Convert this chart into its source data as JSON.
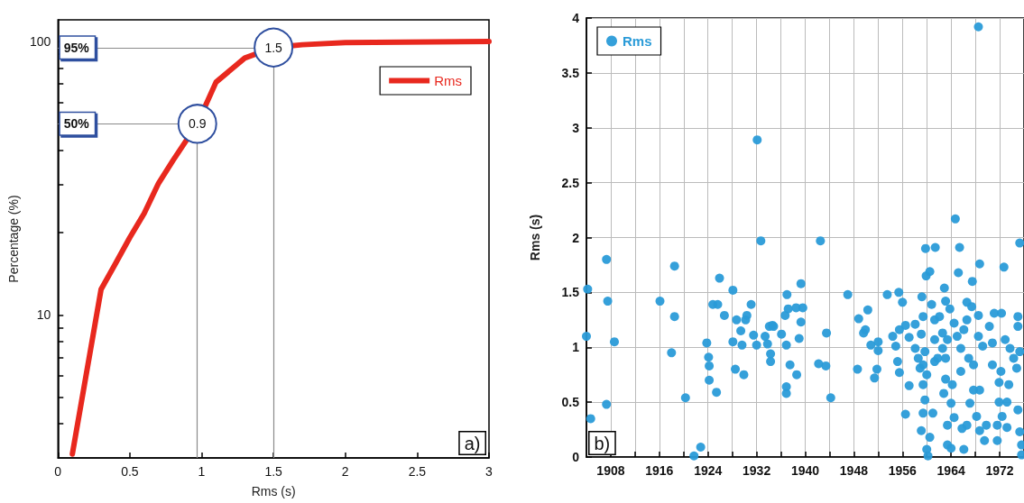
{
  "chart_data": [
    {
      "type": "line",
      "xlabel": "Rms (s)",
      "ylabel": "Percentage (%)",
      "log": "y",
      "grid": false,
      "legend": "top right",
      "marker": "none",
      "line_style": "solid",
      "xlim": [
        0,
        3
      ],
      "xticks": [
        0,
        0.5,
        1,
        1.5,
        2,
        2.5,
        3
      ],
      "ylim": [
        3,
        120
      ],
      "yticks": [
        {
          "value": 4,
          "label": null
        },
        {
          "value": 5,
          "label": null
        },
        {
          "value": 6,
          "label": null
        },
        {
          "value": 7,
          "label": null
        },
        {
          "value": 8,
          "label": null
        },
        {
          "value": 9,
          "label": null
        },
        10,
        {
          "value": 20,
          "label": null
        },
        {
          "value": 30,
          "label": null
        },
        {
          "value": 40,
          "label": null
        },
        {
          "value": 50,
          "label": null
        },
        {
          "value": 60,
          "label": null
        },
        {
          "value": 70,
          "label": null
        },
        {
          "value": 80,
          "label": null
        },
        {
          "value": 90,
          "label": null
        },
        100
      ],
      "series": [
        {
          "name": "Rms",
          "color": "#e8281e",
          "x": [
            0.1,
            0.3,
            0.4,
            0.5,
            0.6,
            0.7,
            0.8,
            0.97,
            1.1,
            1.3,
            1.5,
            1.7,
            2.0,
            3.0
          ],
          "values": [
            3.1,
            12.4,
            15.4,
            19.2,
            23.5,
            30.3,
            36.7,
            50,
            71,
            87,
            95,
            97.3,
            99,
            100
          ]
        }
      ],
      "ref_lines": [
        {
          "axis": "y",
          "value": 95,
          "label": "95%"
        },
        {
          "axis": "y",
          "value": 50,
          "label": "50%"
        },
        {
          "axis": "x",
          "value": 1.5
        },
        {
          "axis": "x",
          "value": 0.97
        }
      ],
      "annotations": [
        {
          "text": "1.5",
          "x": 1.5,
          "y": 95
        },
        {
          "text": "0.9",
          "x": 0.97,
          "y": 50
        },
        "a)"
      ]
    },
    {
      "type": "scatter",
      "ylabel": "Rms (s)",
      "grid": true,
      "legend": "top left",
      "marker": "circle",
      "xlim": [
        1904,
        1976
      ],
      "xticks": [
        1908,
        {
          "value": 1912,
          "label": null
        },
        1916,
        {
          "value": 1920,
          "label": null
        },
        1924,
        {
          "value": 1928,
          "label": null
        },
        1932,
        {
          "value": 1936,
          "label": null
        },
        1940,
        {
          "value": 1944,
          "label": null
        },
        1948,
        {
          "value": 1952,
          "label": null
        },
        1956,
        {
          "value": 1960,
          "label": null
        },
        1964,
        {
          "value": 1968,
          "label": null
        },
        1972
      ],
      "ylim": [
        0,
        4
      ],
      "yticks": [
        0,
        0.5,
        1,
        1.5,
        2,
        2.5,
        3,
        3.5,
        4
      ],
      "series": [
        {
          "name": "Rms",
          "color": "#2a9bd8",
          "x": [
            1904.2,
            1904.0,
            1904.7,
            1907.3,
            1907.5,
            1907.3,
            1908.6,
            1916.1,
            1918.5,
            1918.5,
            1918.0,
            1920.3,
            1921.7,
            1922.8,
            1923.8,
            1924.1,
            1924.2,
            1924.2,
            1925.4,
            1924.8,
            1925.6,
            1925.9,
            1926.7,
            1928.1,
            1928.1,
            1928.5,
            1928.7,
            1929.4,
            1929.6,
            1929.9,
            1930.2,
            1930.4,
            1931.1,
            1931.5,
            1932.0,
            1932.1,
            1932.7,
            1933.4,
            1933.8,
            1934.1,
            1934.3,
            1934.3,
            1934.6,
            1934.8,
            1936.1,
            1936.9,
            1936.7,
            1937.2,
            1937.0,
            1937.5,
            1936.9,
            1936.9,
            1938.6,
            1938.5,
            1939.6,
            1939.3,
            1939.3,
            1939.0,
            1942.2,
            1943.4,
            1942.5,
            1943.5,
            1944.2,
            1947.0,
            1948.6,
            1948.8,
            1949.6,
            1950.3,
            1949.9,
            1950.8,
            1952.0,
            1952.0,
            1951.8,
            1951.4,
            1953.5,
            1955.4,
            1956.0,
            1954.4,
            1954.9,
            1955.5,
            1956.5,
            1957.1,
            1955.2,
            1955.5,
            1957.1,
            1956.5,
            1958.1,
            1959.1,
            1958.1,
            1959.2,
            1959.1,
            1960.0,
            1960.2,
            1960.5,
            1959.8,
            1961.4,
            1959.9,
            1960.5,
            1960.8,
            1959.4,
            1961.3,
            1962.1,
            1962.9,
            1963.1,
            1963.8,
            1964.7,
            1965.4,
            1965.2,
            1968.7,
            1967.5,
            1966.6,
            1967.4,
            1968.5,
            1968.5,
            1972.7,
            1975.3,
            1971.1,
            1972.3,
            1975.0,
            1975.0,
            1959.7,
            1959.4,
            1959.4,
            1959.7,
            1959.4,
            1961.0,
            1960.0,
            1961.3,
            1961.3,
            1961.8,
            1962.6,
            1962.6,
            1963.4,
            1963.1,
            1963.1,
            1962.8,
            1963.4,
            1964.2,
            1964.0,
            1963.4,
            1964.0,
            1964.5,
            1965.6,
            1965.6,
            1965.0,
            1966.1,
            1966.1,
            1965.8,
            1966.6,
            1966.9,
            1967.7,
            1967.1,
            1967.7,
            1968.2,
            1968.5,
            1968.7,
            1968.7,
            1969.5,
            1969.8,
            1969.2,
            1970.3,
            1970.8,
            1971.6,
            1971.6,
            1971.9,
            1973.2,
            1972.4,
            1973.2,
            1971.9,
            1972.2,
            1972.9,
            1973.7,
            1974.3,
            1974.8,
            1975.3,
            1975.0,
            1975.3,
            1975.6,
            1975.6,
            1973.5,
            1970.8,
            1966.6,
            1964.5,
            1958.6,
            1958.9
          ],
          "values": [
            1.53,
            1.1,
            0.35,
            1.8,
            1.42,
            0.48,
            1.05,
            1.42,
            1.74,
            1.28,
            0.95,
            0.54,
            0.01,
            0.09,
            1.04,
            0.91,
            0.83,
            0.7,
            0.59,
            1.39,
            1.39,
            1.63,
            1.29,
            1.52,
            1.05,
            0.8,
            1.25,
            1.15,
            1.02,
            0.75,
            1.25,
            1.29,
            1.39,
            1.11,
            1.02,
            2.89,
            1.97,
            1.1,
            1.03,
            1.19,
            0.94,
            0.87,
            1.2,
            1.19,
            1.12,
            1.02,
            1.29,
            1.35,
            1.48,
            0.84,
            0.64,
            0.58,
            0.75,
            1.36,
            1.36,
            1.58,
            1.23,
            1.08,
            0.85,
            0.83,
            1.97,
            1.13,
            0.54,
            1.48,
            0.8,
            1.26,
            1.13,
            1.34,
            1.16,
            1.02,
            1.05,
            0.97,
            0.8,
            0.72,
            1.48,
            1.5,
            1.41,
            1.1,
            1.01,
            1.16,
            1.2,
            1.09,
            0.87,
            0.77,
            0.65,
            0.39,
            1.21,
            1.12,
            0.99,
            1.46,
            0.24,
            0.07,
            0.01,
            0.18,
            1.9,
            1.91,
            1.65,
            1.69,
            1.39,
            1.28,
            1.25,
            1.28,
            1.54,
            1.42,
            1.35,
            2.17,
            1.91,
            1.68,
            1.76,
            1.6,
            1.41,
            1.37,
            1.29,
            3.92,
            1.73,
            1.95,
            1.31,
            1.31,
            1.28,
            1.19,
            0.96,
            0.84,
            0.66,
            0.52,
            0.4,
            0.4,
            0.75,
            1.07,
            0.87,
            0.9,
            1.13,
            0.99,
            1.07,
            0.9,
            0.71,
            0.58,
            0.29,
            0.66,
            0.49,
            0.11,
            0.08,
            0.36,
            0.78,
            0.99,
            1.1,
            1.16,
            0.07,
            0.26,
            0.29,
            0.9,
            0.84,
            0.49,
            0.61,
            0.37,
            1.1,
            0.61,
            0.24,
            0.15,
            0.29,
            1.01,
            1.19,
            0.84,
            0.15,
            0.29,
            0.5,
            0.5,
            0.37,
            0.27,
            0.68,
            0.78,
            1.07,
            0.99,
            0.9,
            0.81,
            0.96,
            0.43,
            0.23,
            0.02,
            0.11,
            0.66,
            1.04,
            1.25,
            1.22,
            0.9,
            0.81
          ]
        }
      ],
      "annotations": [
        "b)"
      ]
    }
  ]
}
